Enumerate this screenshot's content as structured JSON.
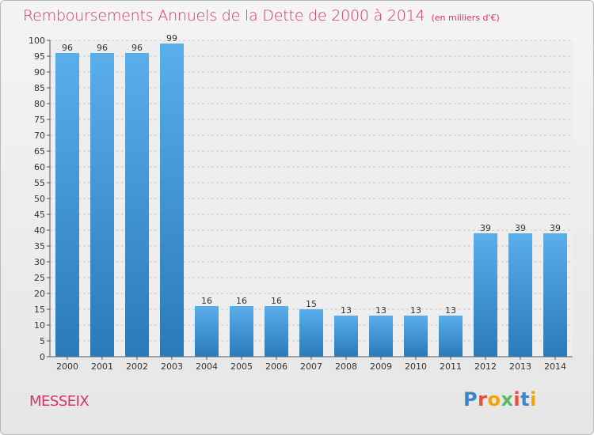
{
  "title": "Remboursements Annuels de la Dette de 2000 à 2014",
  "unit_note": "(en milliers d'€)",
  "location": "MESSEIX",
  "logo": {
    "text": "Proxiti",
    "letter_colors": [
      "#3a86c8",
      "#e94b3c",
      "#f2a20c",
      "#5cb85c",
      "#e94b3c",
      "#3a86c8",
      "#f2a20c"
    ]
  },
  "colors": {
    "bar_light": "#5aaeea",
    "bar_dark": "#2a7ab8",
    "title": "#d6336c"
  },
  "chart_data": {
    "type": "bar",
    "categories": [
      "2000",
      "2001",
      "2002",
      "2003",
      "2004",
      "2005",
      "2006",
      "2007",
      "2008",
      "2009",
      "2010",
      "2011",
      "2012",
      "2013",
      "2014"
    ],
    "values": [
      96,
      96,
      96,
      99,
      16,
      16,
      16,
      15,
      13,
      13,
      13,
      13,
      39,
      39,
      39
    ],
    "title": "Remboursements Annuels de la Dette de 2000 à 2014",
    "xlabel": "",
    "ylabel": "",
    "ylim": [
      0,
      100
    ],
    "yticks": [
      0,
      5,
      10,
      15,
      20,
      25,
      30,
      35,
      40,
      45,
      50,
      55,
      60,
      65,
      70,
      75,
      80,
      85,
      90,
      95,
      100
    ],
    "grid": true
  }
}
